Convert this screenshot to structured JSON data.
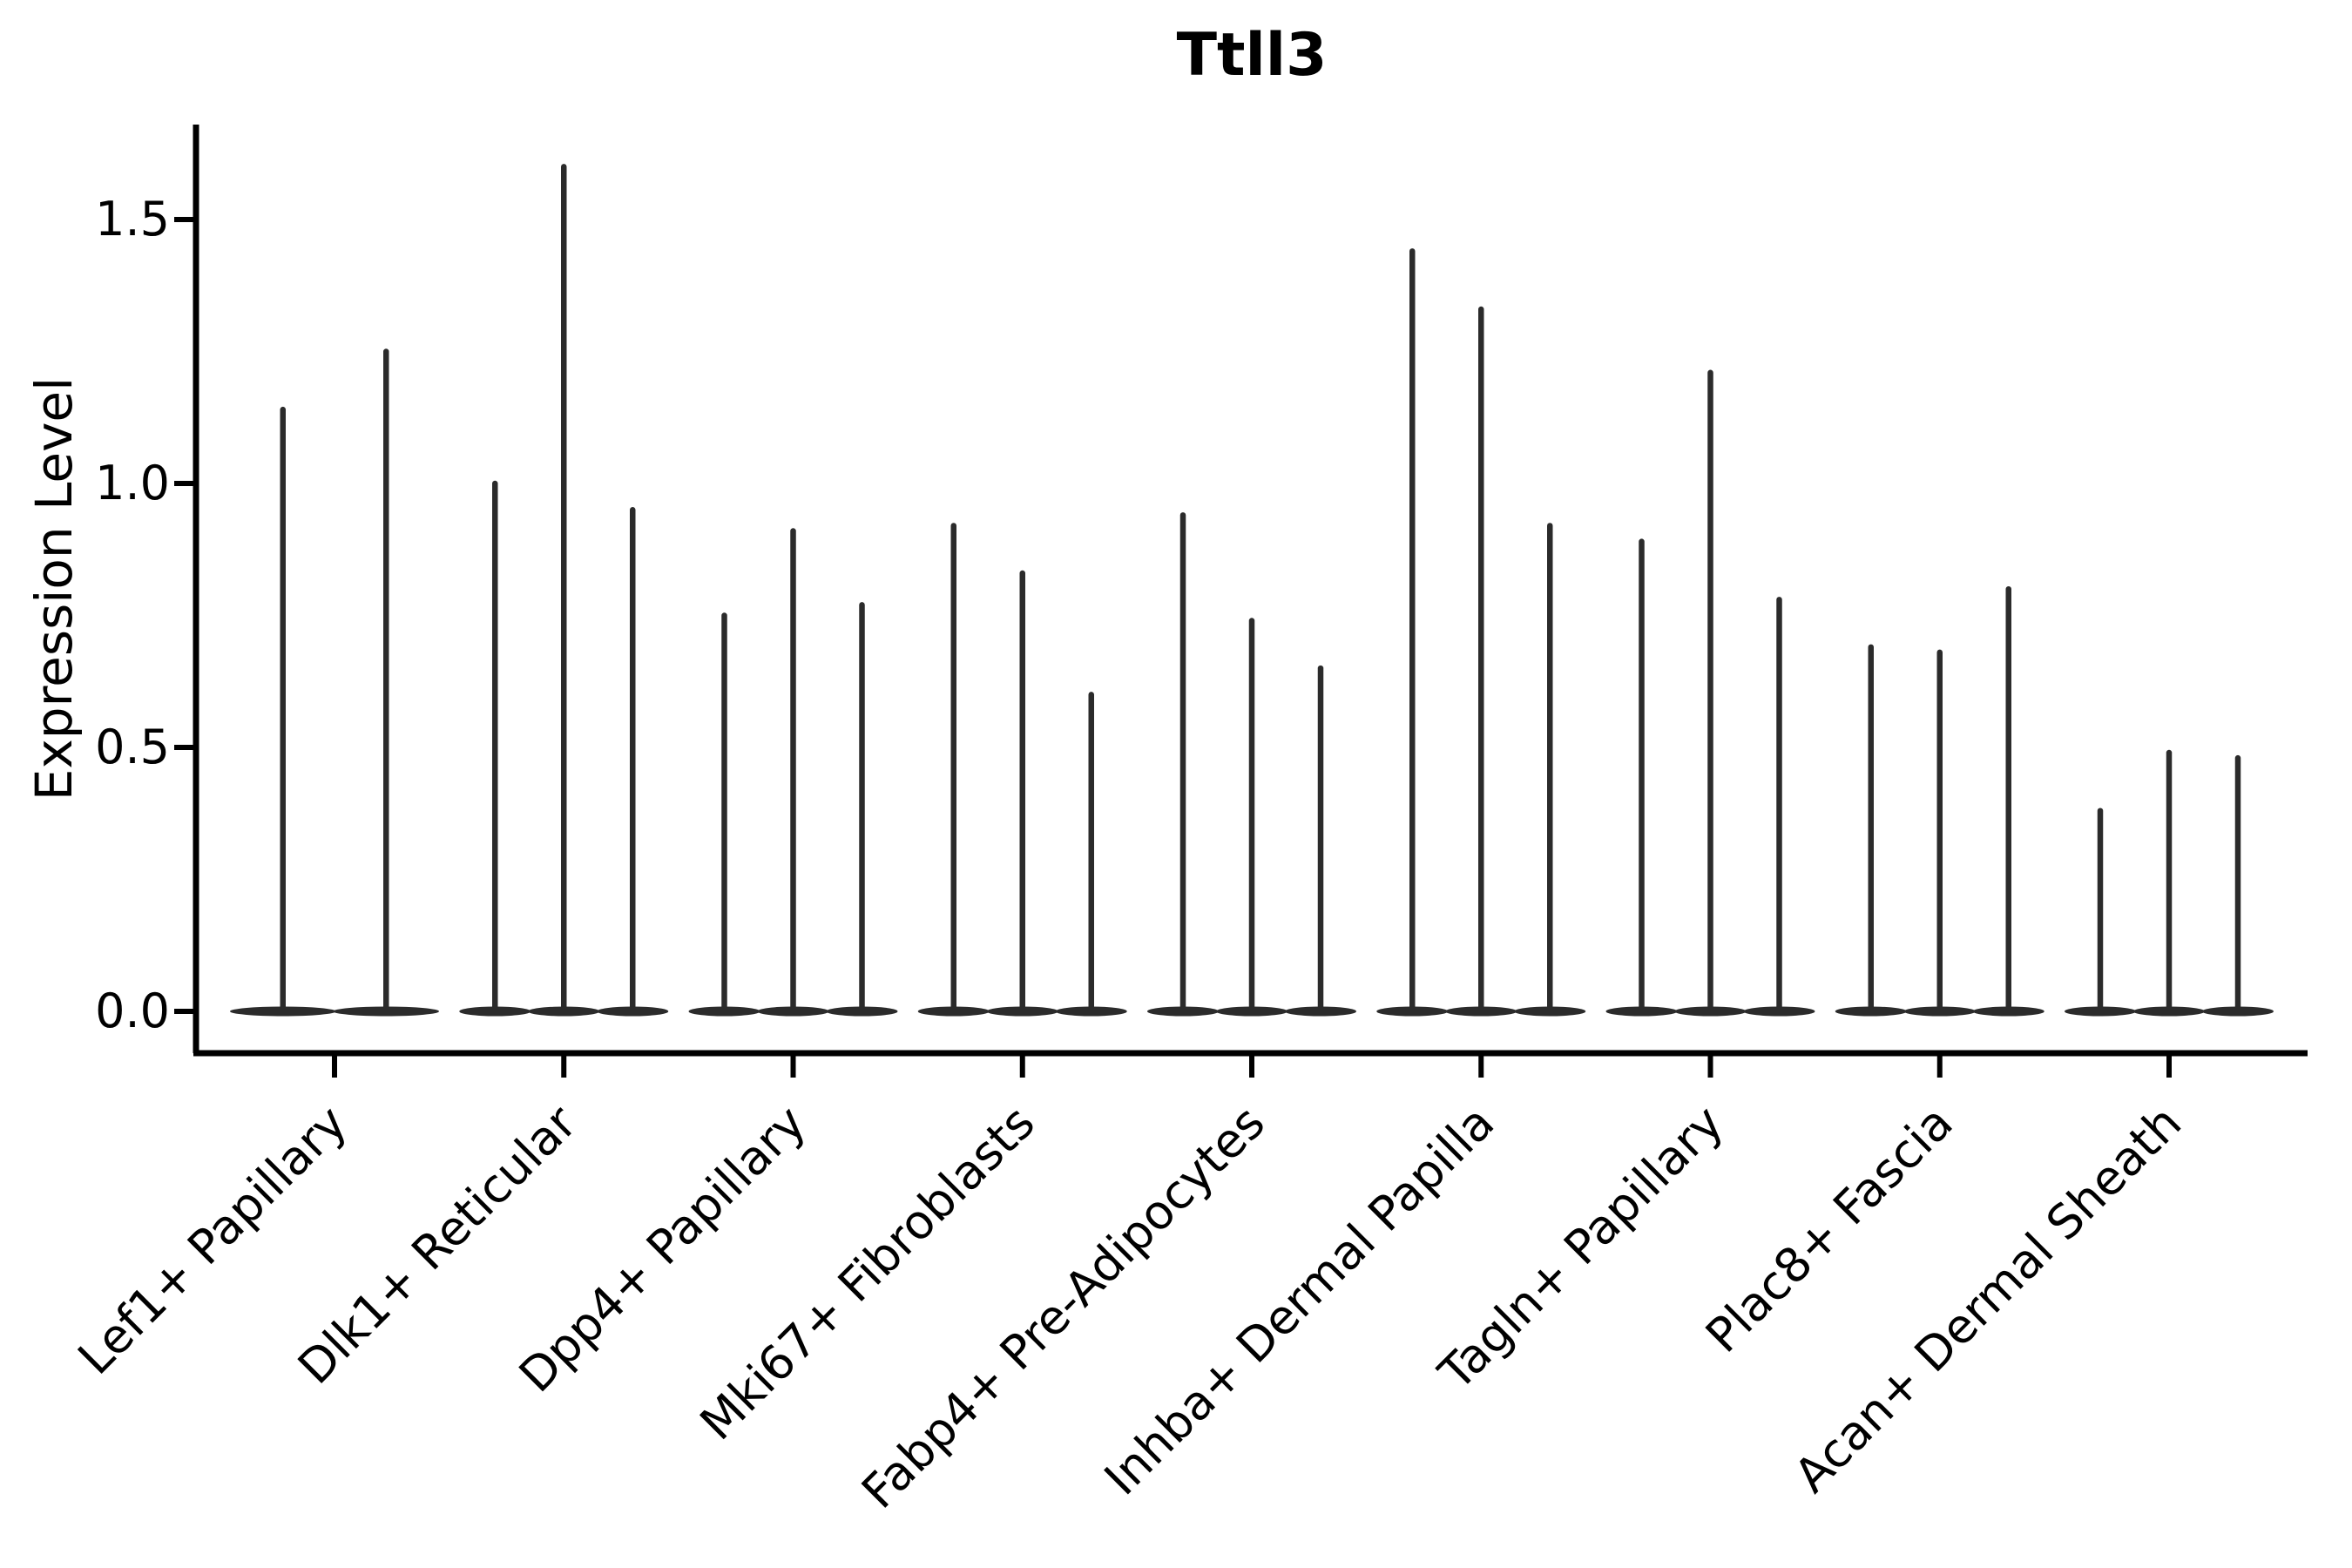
{
  "chart_data": {
    "type": "violin",
    "title": "Ttll3",
    "ylabel": "Expression Level",
    "xlabel": "",
    "y_tick_labels": [
      "0.0",
      "0.5",
      "1.0",
      "1.5"
    ],
    "y_tick_values": [
      0.0,
      0.5,
      1.0,
      1.5
    ],
    "ylim": [
      -0.08,
      1.68
    ],
    "grid": false,
    "legend": false,
    "x_tick_label_rotation_deg": 45,
    "description": "Violin plot of single-cell expression; each cluster shows 2-3 needle-thin violins whose mass sits at 0 with a narrow spike up to the maximum expression value.",
    "groups": [
      {
        "label": "Lef1+ Papillary",
        "violin_maxima": [
          1.14,
          1.25
        ]
      },
      {
        "label": "Dlk1+ Reticular",
        "violin_maxima": [
          1.0,
          1.6,
          0.95
        ]
      },
      {
        "label": "Dpp4+ Papillary",
        "violin_maxima": [
          0.75,
          0.91,
          0.77
        ]
      },
      {
        "label": "Mki67+ Fibroblasts",
        "violin_maxima": [
          0.92,
          0.83,
          0.6
        ]
      },
      {
        "label": "Fabp4+ Pre-Adipocytes",
        "violin_maxima": [
          0.94,
          0.74,
          0.65
        ]
      },
      {
        "label": "Inhba+ Dermal Papilla",
        "violin_maxima": [
          1.44,
          1.33,
          0.92
        ]
      },
      {
        "label": "Tagln+ Papillary",
        "violin_maxima": [
          0.89,
          1.21,
          0.78
        ]
      },
      {
        "label": "Plac8+ Fascia",
        "violin_maxima": [
          0.69,
          0.68,
          0.8
        ]
      },
      {
        "label": "Acan+ Dermal Sheath",
        "violin_maxima": [
          0.38,
          0.49,
          0.48
        ]
      }
    ],
    "colors": {
      "violin": "#2b2b2b",
      "axis": "#000000",
      "text": "#000000",
      "background": "#ffffff"
    }
  }
}
